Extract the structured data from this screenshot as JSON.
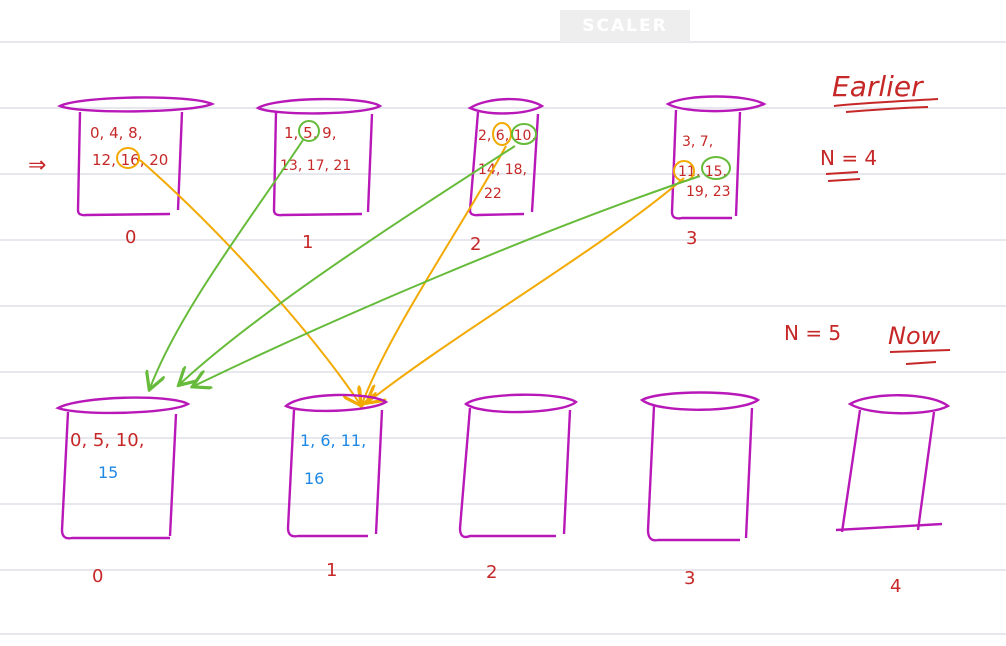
{
  "watermark": "SCALER",
  "colors": {
    "bucket": "#b818b8",
    "red_ink": "#c62828",
    "blue_ink": "#1e88e5",
    "orange_ink": "#f2a900",
    "green_ink": "#66bb3a",
    "ruled_line": "#d6dbe3"
  },
  "earlier": {
    "heading": "Earlier",
    "n_label": "N = 4",
    "pointer": "⇒",
    "buckets": [
      {
        "index": "0",
        "line1": "0, 4, 8,",
        "line2": "12, 16, 20",
        "line3": ""
      },
      {
        "index": "1",
        "line1": "1, 5, 9,",
        "line2": "13, 17, 21",
        "line3": ""
      },
      {
        "index": "2",
        "line1": "2, 6, 10,",
        "line2": "14, 18,",
        "line3": "22"
      },
      {
        "index": "3",
        "line1": "3, 7,",
        "line2": "11, 15,",
        "line3": "19, 23"
      }
    ]
  },
  "now": {
    "heading": "Now",
    "n_label": "N = 5",
    "buckets": [
      {
        "index": "0",
        "line1": "0, 5, 10,",
        "line2": "15"
      },
      {
        "index": "1",
        "line1": "1, 6, 11,",
        "line2": "16"
      },
      {
        "index": "2",
        "line1": "",
        "line2": ""
      },
      {
        "index": "3",
        "line1": "",
        "line2": ""
      },
      {
        "index": "4",
        "line1": "",
        "line2": ""
      }
    ]
  }
}
